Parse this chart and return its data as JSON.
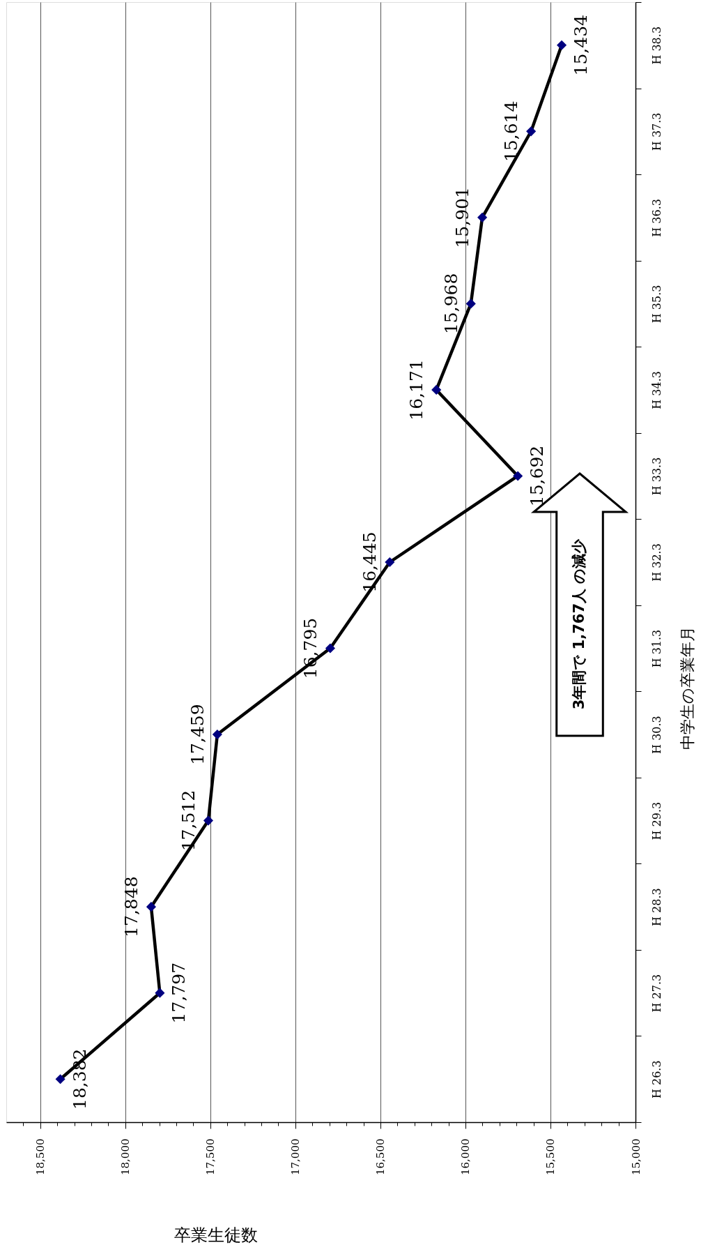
{
  "chart_data": {
    "type": "line",
    "orientation": "horizontal",
    "ylabel": "中学生の卒業年月",
    "xlabel": "卒業生徒数",
    "categories": [
      "H 38.3",
      "H 37.3",
      "H 36.3",
      "H 35.3",
      "H 34.3",
      "H 33.3",
      "H 32.3",
      "H 31.3",
      "H 30.3",
      "H 29.3",
      "H 28.3",
      "H 27.3",
      "H 26.3"
    ],
    "series": [
      {
        "color": "#000080",
        "values": [
          15434,
          15614,
          15901,
          15968,
          16171,
          15692,
          16445,
          16795,
          17459,
          17512,
          17848,
          17797,
          18382
        ],
        "value_labels": [
          "15,434",
          "15,614",
          "15,901",
          "15,968",
          "16,171",
          "15,692",
          "16,445",
          "16,795",
          "17,459",
          "17,512",
          "17,848",
          "17,797",
          "18,382"
        ]
      }
    ],
    "marker": "diamond",
    "line_style": "solid",
    "xlim": [
      18700,
      15000
    ],
    "xticks": [
      {
        "value": 18600,
        "label": null
      },
      {
        "value": 18500,
        "label": "18,500"
      },
      {
        "value": 18400,
        "label": null
      },
      {
        "value": 18300,
        "label": null
      },
      {
        "value": 18200,
        "label": null
      },
      {
        "value": 18100,
        "label": null
      },
      {
        "value": 18000,
        "label": "18,000"
      },
      {
        "value": 17900,
        "label": null
      },
      {
        "value": 17800,
        "label": null
      },
      {
        "value": 17700,
        "label": null
      },
      {
        "value": 17600,
        "label": null
      },
      {
        "value": 17500,
        "label": "17,500"
      },
      {
        "value": 17400,
        "label": null
      },
      {
        "value": 17300,
        "label": null
      },
      {
        "value": 17200,
        "label": null
      },
      {
        "value": 17100,
        "label": null
      },
      {
        "value": 17000,
        "label": "17,000"
      },
      {
        "value": 16900,
        "label": null
      },
      {
        "value": 16800,
        "label": null
      },
      {
        "value": 16700,
        "label": null
      },
      {
        "value": 16600,
        "label": null
      },
      {
        "value": 16500,
        "label": "16,500"
      },
      {
        "value": 16400,
        "label": null
      },
      {
        "value": 16300,
        "label": null
      },
      {
        "value": 16200,
        "label": null
      },
      {
        "value": 16100,
        "label": null
      },
      {
        "value": 16000,
        "label": "16,000"
      },
      {
        "value": 15900,
        "label": null
      },
      {
        "value": 15800,
        "label": null
      },
      {
        "value": 15700,
        "label": null
      },
      {
        "value": 15600,
        "label": null
      },
      {
        "value": 15500,
        "label": "15,500"
      },
      {
        "value": 15400,
        "label": null
      },
      {
        "value": 15300,
        "label": null
      },
      {
        "value": 15200,
        "label": null
      },
      {
        "value": 15100,
        "label": null
      },
      {
        "value": 15000,
        "label": "15,000"
      }
    ],
    "grid": "x",
    "annotations": [
      "3年間で 1,767人 の減少"
    ]
  }
}
